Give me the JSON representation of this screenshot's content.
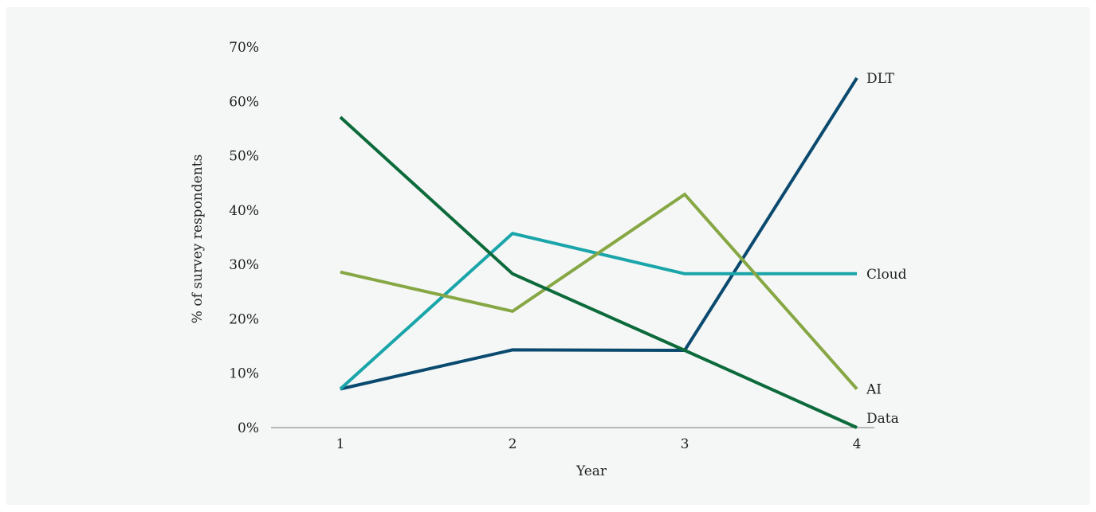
{
  "chart_data": {
    "type": "line",
    "title": "",
    "xlabel": "Year",
    "ylabel": "% of survey respondents",
    "x": [
      1,
      2,
      3,
      4
    ],
    "x_tick_labels": [
      "1",
      "2",
      "3",
      "4"
    ],
    "ylim": [
      0,
      70
    ],
    "y_ticks": [
      0,
      10,
      20,
      30,
      40,
      50,
      60,
      70
    ],
    "y_tick_labels": [
      "0%",
      "10%",
      "20%",
      "30%",
      "40%",
      "50%",
      "60%",
      "70%"
    ],
    "grid": false,
    "legend": "labels at line ends (right)",
    "series": [
      {
        "name": "DLT",
        "color": "#0b4a6f",
        "values": [
          7.1,
          14.3,
          14.2,
          64.3
        ]
      },
      {
        "name": "Cloud",
        "color": "#19a5a9",
        "values": [
          7.1,
          35.7,
          28.3,
          28.3
        ]
      },
      {
        "name": "AI",
        "color": "#86a744",
        "values": [
          28.6,
          21.4,
          42.9,
          7.1
        ]
      },
      {
        "name": "Data",
        "color": "#0c6a3b",
        "values": [
          57.1,
          28.3,
          14.2,
          0
        ]
      }
    ]
  }
}
